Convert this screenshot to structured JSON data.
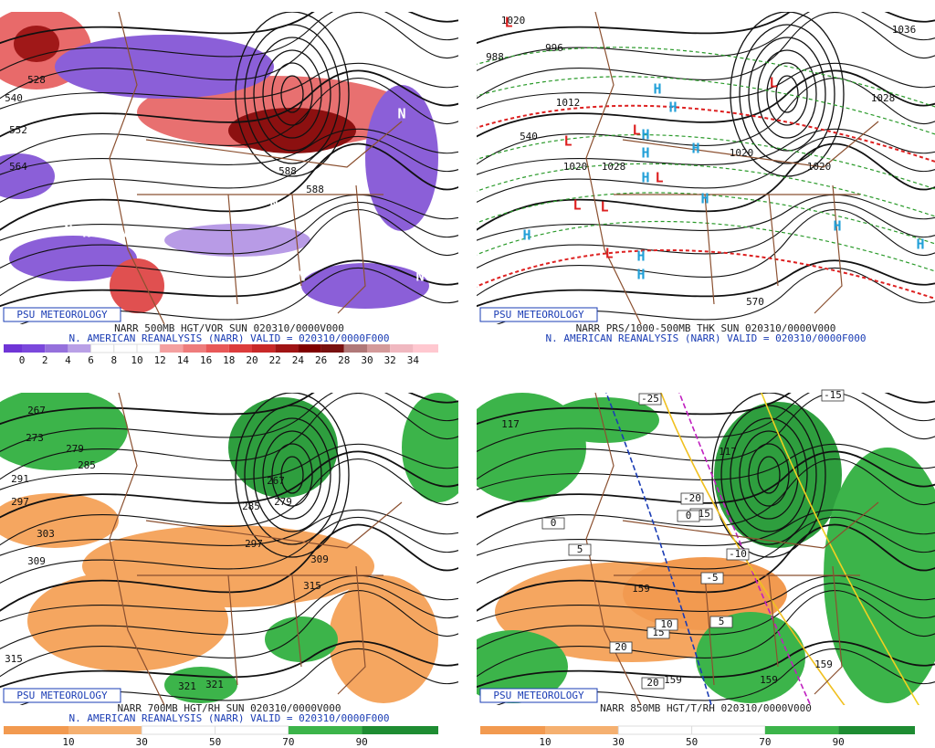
{
  "panels": [
    {
      "logo": "PSU METEOROLOGY",
      "title": "NARR 500MB HGT/VOR SUN 020310/0000V000",
      "subtitle": "N. AMERICAN REANALYSIS (NARR) VALID = 020310/0000F000",
      "scale": [
        0,
        2,
        4,
        6,
        8,
        10,
        12,
        14,
        16,
        18,
        20,
        22,
        24,
        26,
        28,
        30,
        32,
        34
      ],
      "contour_labels": [
        "528",
        "540",
        "552",
        "564",
        "588",
        "588"
      ],
      "markers": [
        "N",
        "N",
        "N",
        "N",
        "N",
        "N",
        "N"
      ]
    },
    {
      "logo": "PSU METEOROLOGY",
      "title": "NARR PRS/1000-500MB THK SUN 020310/0000V000",
      "subtitle": "N. AMERICAN REANALYSIS (NARR) VALID = 020310/0000F000",
      "contour_labels": [
        "1020",
        "988",
        "996",
        "1036",
        "1028",
        "1012",
        "1020",
        "1028",
        "1020",
        "1020",
        "540",
        "570"
      ],
      "markers": [
        "L",
        "L",
        "L",
        "L",
        "L",
        "L",
        "L",
        "L",
        "H",
        "H",
        "H",
        "H",
        "H",
        "H",
        "H",
        "H",
        "H",
        "H",
        "H",
        "H"
      ]
    },
    {
      "logo": "PSU METEOROLOGY",
      "title": "NARR 700MB HGT/RH SUN 020310/0000V000",
      "subtitle": "N. AMERICAN REANALYSIS (NARR) VALID = 020310/0000F000",
      "scale": [
        10,
        30,
        50,
        70,
        90
      ],
      "contour_labels": [
        "267",
        "273",
        "279",
        "285",
        "291",
        "297",
        "303",
        "309",
        "267",
        "279",
        "285",
        "297",
        "309",
        "315",
        "315",
        "321",
        "321"
      ]
    },
    {
      "logo": "PSU METEOROLOGY",
      "title": "NARR 850MB HGT/T/RH 020310/0000V000",
      "scale": [
        10,
        30,
        50,
        70,
        90
      ],
      "contour_labels": [
        "117",
        "117",
        "159",
        "159",
        "159",
        "159"
      ],
      "boxed_labels": [
        "-25",
        "-15",
        "-20",
        "-15",
        "-10",
        "0",
        "5",
        "-5",
        "0",
        "5",
        "15",
        "10",
        "20",
        "20"
      ]
    }
  ]
}
